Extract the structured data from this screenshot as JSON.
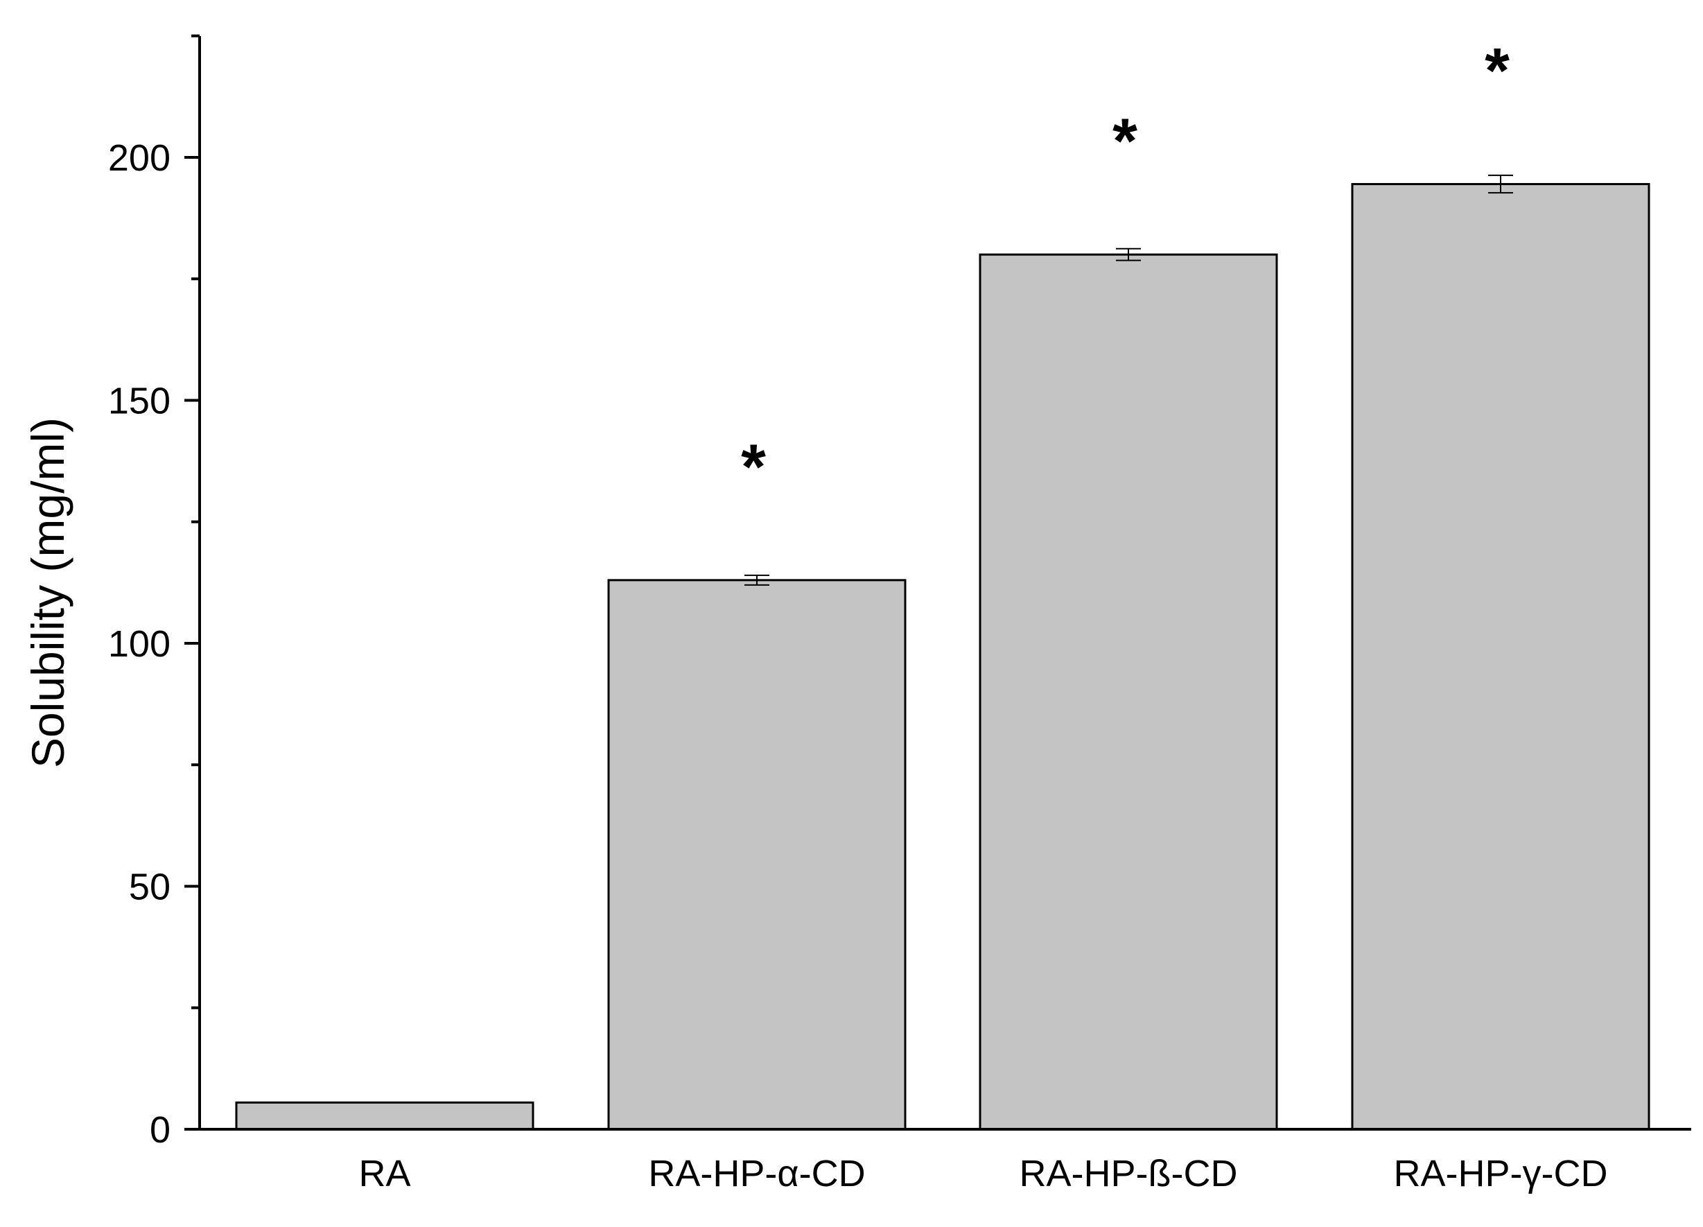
{
  "chart_data": {
    "type": "bar",
    "title": "",
    "xlabel": "",
    "ylabel": "Solubility (mg/ml)",
    "categories": [
      "RA",
      "RA-HP-α-CD",
      "RA-HP-ß-CD",
      "RA-HP-γ-CD"
    ],
    "values": [
      5.5,
      113,
      180,
      194.5
    ],
    "errors": [
      0,
      1.0,
      1.2,
      1.8
    ],
    "significance": [
      "",
      "*",
      "*",
      "*"
    ],
    "ylim": [
      0,
      225
    ],
    "yticks": [
      0,
      50,
      100,
      150,
      200
    ],
    "yminor_ticks": [
      25,
      75,
      125,
      175
    ],
    "grid": false,
    "legend": "none",
    "bar_color": "#c4c4c4",
    "edge_color": "#000000"
  }
}
